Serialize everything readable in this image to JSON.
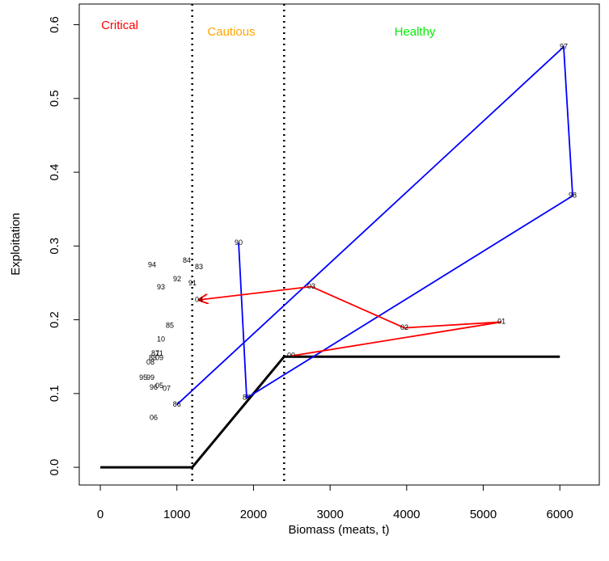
{
  "chart_data": {
    "type": "scatter",
    "xlabel": "Biomass (meats, t)",
    "ylabel": "Exploitation",
    "xlim": [
      -275,
      6515
    ],
    "ylim": [
      -0.024,
      0.628
    ],
    "xticks": [
      0,
      1000,
      2000,
      3000,
      4000,
      5000,
      6000
    ],
    "yticks": [
      {
        "value": 0,
        "label": "0.0"
      },
      0.1,
      0.2,
      0.3,
      0.4,
      0.5,
      0.6
    ],
    "zones": [
      {
        "label": "Critical",
        "color": "#ff0000"
      },
      {
        "label": "Cautious",
        "color": "#ffa500"
      },
      {
        "label": "Healthy",
        "color": "#00ee00"
      }
    ],
    "thresholds": [
      1200,
      2400
    ],
    "hcr": {
      "color": "#000000",
      "x": [
        0,
        1200,
        2400,
        6000
      ],
      "values": [
        0,
        0,
        0.15,
        0.15
      ]
    },
    "series": [
      {
        "color": "#0000ff",
        "line": true,
        "arrow": false,
        "labels": [
          "90",
          "89",
          "98",
          "97",
          "86"
        ],
        "x": [
          1806,
          1911,
          6167,
          6050,
          1000
        ],
        "values": [
          0.304,
          0.094,
          0.368,
          0.57,
          0.085
        ]
      },
      {
        "color": "#ff0000",
        "line": true,
        "arrow": true,
        "labels": [
          "00",
          "01",
          "02",
          "03",
          "04"
        ],
        "x": [
          2492,
          5238,
          3970,
          2756,
          1288
        ],
        "values": [
          0.151,
          0.197,
          0.189,
          0.245,
          0.227
        ]
      },
      {
        "color": "#000000",
        "line": false,
        "arrow": false,
        "labels": [
          "94",
          "84",
          "83",
          "92",
          "91",
          "93",
          "85",
          "10",
          "87",
          "11",
          "88",
          "09",
          "08",
          "95",
          "99",
          "96",
          "05",
          "07",
          "06"
        ],
        "x": [
          676,
          1130,
          1288,
          1003,
          1204,
          792,
          908,
          792,
          718,
          771,
          686,
          771,
          655,
          560,
          655,
          697,
          771,
          866,
          697
        ],
        "values": [
          0.274,
          0.28,
          0.271,
          0.255,
          0.249,
          0.244,
          0.192,
          0.173,
          0.154,
          0.154,
          0.148,
          0.148,
          0.142,
          0.121,
          0.121,
          0.108,
          0.11,
          0.106,
          0.067
        ]
      }
    ]
  }
}
